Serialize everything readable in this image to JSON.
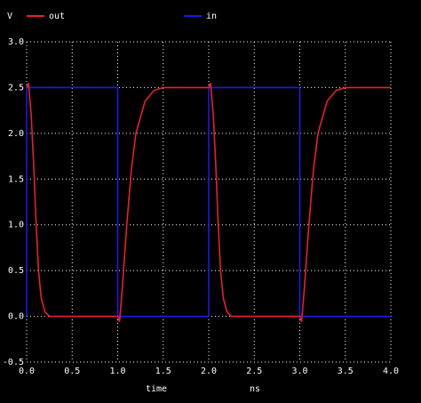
{
  "chart_data": {
    "type": "line",
    "y_label": "V",
    "x_label": "time",
    "x_unit": "ns",
    "background": "#000000",
    "grid": true,
    "xlim": [
      0,
      4
    ],
    "ylim": [
      -0.5,
      3
    ],
    "xticks": [
      {
        "value": 0,
        "label": "0.0"
      },
      0.5,
      {
        "value": 1,
        "label": "1.0"
      },
      1.5,
      {
        "value": 2,
        "label": "2.0"
      },
      2.5,
      {
        "value": 3,
        "label": "3.0"
      },
      3.5,
      {
        "value": 4,
        "label": "4.0"
      }
    ],
    "yticks": [
      -0.5,
      {
        "value": 0,
        "label": "0.0"
      },
      0.5,
      {
        "value": 1,
        "label": "1.0"
      },
      1.5,
      {
        "value": 2,
        "label": "2.0"
      },
      2.5,
      {
        "value": 3,
        "label": "3.0"
      }
    ],
    "series": [
      {
        "name": "out",
        "color": "#e8202a",
        "x": [
          0,
          0.02,
          0.05,
          0.08,
          0.1,
          0.13,
          0.16,
          0.2,
          0.25,
          1.0,
          1.02,
          1.05,
          1.1,
          1.15,
          1.2,
          1.3,
          1.4,
          1.5,
          2.0,
          2.02,
          2.05,
          2.08,
          2.1,
          2.13,
          2.16,
          2.2,
          2.25,
          3.0,
          3.02,
          3.05,
          3.1,
          3.15,
          3.2,
          3.3,
          3.4,
          3.5,
          4.0
        ],
        "values": [
          2.5,
          2.55,
          2.2,
          1.6,
          1.1,
          0.5,
          0.2,
          0.05,
          0,
          0,
          -0.06,
          0.3,
          1.0,
          1.6,
          2.0,
          2.35,
          2.47,
          2.5,
          2.5,
          2.55,
          2.2,
          1.6,
          1.1,
          0.5,
          0.2,
          0.05,
          0,
          0,
          -0.06,
          0.3,
          1.0,
          1.6,
          2.0,
          2.35,
          2.47,
          2.5,
          2.5
        ]
      },
      {
        "name": "in",
        "color": "#1a1ae6",
        "x": [
          0,
          0,
          1,
          1,
          2,
          2,
          3,
          3,
          4
        ],
        "values": [
          0,
          2.5,
          2.5,
          0,
          0,
          2.5,
          2.5,
          0,
          0
        ]
      }
    ]
  }
}
